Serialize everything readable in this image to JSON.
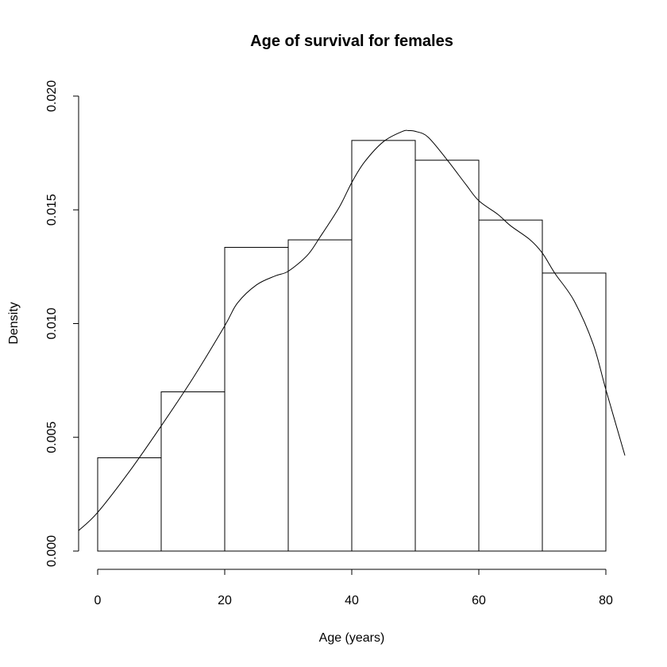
{
  "chart_data": {
    "type": "bar",
    "subtype": "histogram",
    "title": "Age of survival for females",
    "xlabel": "Age (years)",
    "ylabel": "Density",
    "bins": [
      {
        "from": 0,
        "to": 10,
        "density": 0.0041
      },
      {
        "from": 10,
        "to": 20,
        "density": 0.007
      },
      {
        "from": 20,
        "to": 30,
        "density": 0.01335
      },
      {
        "from": 30,
        "to": 40,
        "density": 0.01368
      },
      {
        "from": 40,
        "to": 50,
        "density": 0.01805
      },
      {
        "from": 50,
        "to": 60,
        "density": 0.01718
      },
      {
        "from": 60,
        "to": 70,
        "density": 0.01455
      },
      {
        "from": 70,
        "to": 80,
        "density": 0.01222
      }
    ],
    "density_curve": {
      "x": [
        -3,
        0,
        5,
        10,
        15,
        20,
        22,
        25,
        28,
        30,
        33,
        35,
        38,
        40,
        42,
        45,
        48,
        49,
        50,
        52,
        55,
        58,
        60,
        63,
        65,
        68,
        70,
        72,
        75,
        78,
        80,
        83
      ],
      "y": [
        0.0009,
        0.0017,
        0.0035,
        0.0055,
        0.0076,
        0.0099,
        0.0109,
        0.0117,
        0.0121,
        0.0123,
        0.013,
        0.0138,
        0.0151,
        0.0162,
        0.0171,
        0.018,
        0.01845,
        0.01848,
        0.01845,
        0.0182,
        0.0172,
        0.0161,
        0.0154,
        0.0148,
        0.0143,
        0.0137,
        0.0131,
        0.0122,
        0.011,
        0.0091,
        0.0071,
        0.0042
      ]
    },
    "xlim": [
      -3,
      83
    ],
    "ylim": [
      0,
      0.02
    ],
    "x_ticks": [
      0,
      20,
      40,
      60,
      80
    ],
    "y_ticks": [
      "0.000",
      "0.005",
      "0.010",
      "0.015",
      "0.020"
    ],
    "grid": false,
    "legend": "none"
  }
}
